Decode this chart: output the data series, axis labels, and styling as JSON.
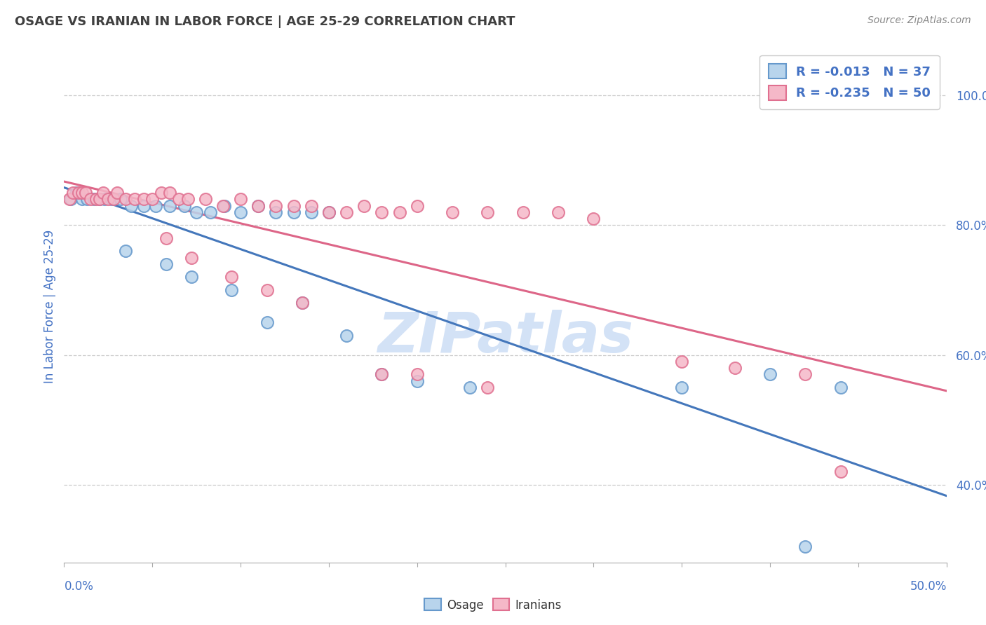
{
  "title": "OSAGE VS IRANIAN IN LABOR FORCE | AGE 25-29 CORRELATION CHART",
  "source_text": "Source: ZipAtlas.com",
  "ylabel": "In Labor Force | Age 25-29",
  "xlim": [
    0.0,
    50.0
  ],
  "ylim": [
    28.0,
    107.0
  ],
  "ytick_values": [
    40.0,
    60.0,
    80.0,
    100.0
  ],
  "legend_osage_R": "-0.013",
  "legend_osage_N": "37",
  "legend_iranian_R": "-0.235",
  "legend_iranian_N": "50",
  "osage_fill": "#b8d4ec",
  "osage_edge": "#6699cc",
  "iranian_fill": "#f5b8c8",
  "iranian_edge": "#e07090",
  "osage_line_color": "#4477bb",
  "iranian_line_color": "#dd6688",
  "legend_text_color": "#4472c4",
  "title_color": "#404040",
  "source_color": "#888888",
  "watermark_color": "#ccddf5",
  "background_color": "#ffffff",
  "grid_color": "#cccccc",
  "osage_x": [
    0.4,
    0.7,
    1.0,
    1.3,
    1.7,
    2.0,
    2.3,
    2.7,
    3.2,
    3.8,
    4.5,
    5.2,
    6.0,
    6.8,
    7.5,
    8.3,
    9.1,
    10.0,
    11.0,
    12.0,
    13.0,
    14.0,
    15.0,
    3.5,
    5.8,
    7.2,
    9.5,
    11.5,
    13.5,
    16.0,
    18.0,
    20.0,
    23.0,
    35.0,
    40.0,
    42.0,
    44.0
  ],
  "osage_y": [
    84.0,
    85.0,
    84.0,
    84.0,
    84.0,
    84.0,
    84.0,
    84.0,
    84.0,
    83.0,
    83.0,
    83.0,
    83.0,
    83.0,
    82.0,
    82.0,
    83.0,
    82.0,
    83.0,
    82.0,
    82.0,
    82.0,
    82.0,
    76.0,
    74.0,
    72.0,
    70.0,
    65.0,
    68.0,
    63.0,
    57.0,
    56.0,
    55.0,
    55.0,
    57.0,
    30.5,
    55.0
  ],
  "iranian_x": [
    0.3,
    0.5,
    0.8,
    1.0,
    1.2,
    1.5,
    1.8,
    2.0,
    2.2,
    2.5,
    2.8,
    3.0,
    3.5,
    4.0,
    4.5,
    5.0,
    5.5,
    6.0,
    6.5,
    7.0,
    8.0,
    9.0,
    10.0,
    11.0,
    12.0,
    13.0,
    14.0,
    15.0,
    16.0,
    17.0,
    18.0,
    19.0,
    20.0,
    22.0,
    24.0,
    26.0,
    28.0,
    30.0,
    5.8,
    7.2,
    9.5,
    11.5,
    13.5,
    35.0,
    38.0,
    42.0,
    44.0,
    18.0,
    20.0,
    24.0
  ],
  "iranian_y": [
    84.0,
    85.0,
    85.0,
    85.0,
    85.0,
    84.0,
    84.0,
    84.0,
    85.0,
    84.0,
    84.0,
    85.0,
    84.0,
    84.0,
    84.0,
    84.0,
    85.0,
    85.0,
    84.0,
    84.0,
    84.0,
    83.0,
    84.0,
    83.0,
    83.0,
    83.0,
    83.0,
    82.0,
    82.0,
    83.0,
    82.0,
    82.0,
    83.0,
    82.0,
    82.0,
    82.0,
    82.0,
    81.0,
    78.0,
    75.0,
    72.0,
    70.0,
    68.0,
    59.0,
    58.0,
    57.0,
    42.0,
    57.0,
    57.0,
    55.0
  ]
}
